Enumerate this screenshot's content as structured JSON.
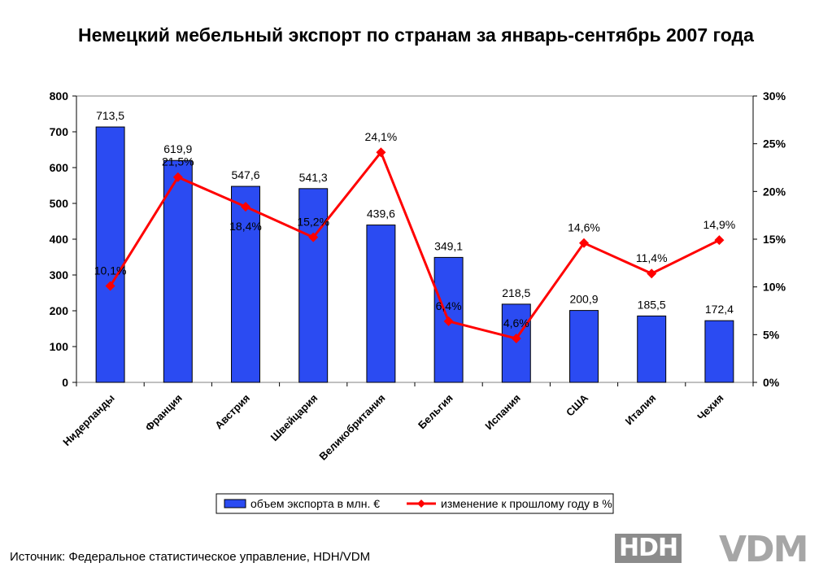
{
  "chart_data": {
    "type": "bar",
    "title": "Немецкий мебельный экспорт по странам за январь-сентябрь 2007 года",
    "categories": [
      "Нидерланды",
      "Франция",
      "Австрия",
      "Швейцария",
      "Великобритания",
      "Бельгия",
      "Испания",
      "США",
      "Италия",
      "Чехия"
    ],
    "series": [
      {
        "name": "объем экспорта в млн. €",
        "kind": "bar",
        "axis": "left",
        "color": "#2b4bf2",
        "values": [
          713.5,
          619.9,
          547.6,
          541.3,
          439.6,
          349.1,
          218.5,
          200.9,
          185.5,
          172.4
        ],
        "labels": [
          "713,5",
          "619,9",
          "547,6",
          "541,3",
          "439,6",
          "349,1",
          "218,5",
          "200,9",
          "185,5",
          "172,4"
        ]
      },
      {
        "name": "изменение к прошлому году в %",
        "kind": "line",
        "axis": "right",
        "color": "#ff0000",
        "values": [
          10.1,
          21.5,
          18.4,
          15.2,
          24.1,
          6.4,
          4.6,
          14.6,
          11.4,
          14.9
        ],
        "labels": [
          "10,1%",
          "21,5%",
          "18,4%",
          "15,2%",
          "24,1%",
          "6,4%",
          "4,6%",
          "14,6%",
          "11,4%",
          "14,9%"
        ]
      }
    ],
    "y_left": {
      "range": [
        0,
        800
      ],
      "ticks": [
        "0",
        "100",
        "200",
        "300",
        "400",
        "500",
        "600",
        "700",
        "800"
      ]
    },
    "y_right": {
      "range": [
        0,
        30
      ],
      "ticks": [
        "0%",
        "5%",
        "10%",
        "15%",
        "20%",
        "25%",
        "30%"
      ]
    },
    "grid": false,
    "legend": "bottom"
  },
  "footer": {
    "source": "Источник: Федеральное статистическое управление, HDH/VDM",
    "logo_hdh": "HDH",
    "logo_vdm": "VDM"
  }
}
